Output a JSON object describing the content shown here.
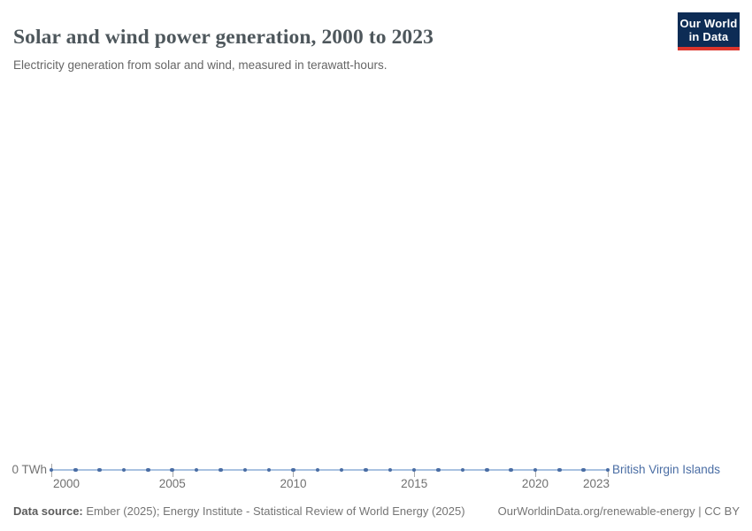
{
  "header": {
    "title": "Solar and wind power generation, 2000 to 2023",
    "subtitle": "Electricity generation from solar and wind, measured in terawatt-hours.",
    "logo": {
      "line1": "Our World",
      "line2": "in Data"
    }
  },
  "chart_data": {
    "type": "line",
    "title": "Solar and wind power generation, 2000 to 2023",
    "unit": "TWh",
    "x": [
      2000,
      2001,
      2002,
      2003,
      2004,
      2005,
      2006,
      2007,
      2008,
      2009,
      2010,
      2011,
      2012,
      2013,
      2014,
      2015,
      2016,
      2017,
      2018,
      2019,
      2020,
      2021,
      2022,
      2023
    ],
    "series": [
      {
        "name": "British Virgin Islands",
        "values": [
          0,
          0,
          0,
          0,
          0,
          0,
          0,
          0,
          0,
          0,
          0,
          0,
          0,
          0,
          0,
          0,
          0,
          0,
          0,
          0,
          0,
          0,
          0,
          0
        ],
        "color": "#4a6da4",
        "line_color": "#a9c2e1"
      }
    ],
    "x_ticks": [
      2000,
      2005,
      2010,
      2015,
      2020,
      2023
    ],
    "x_range": [
      2000,
      2023
    ],
    "y_range": [
      0,
      0
    ],
    "y_zero_label": "0 TWh",
    "grid": false,
    "legend_position": "right-of-line-end"
  },
  "footer": {
    "source_label": "Data source:",
    "source_text": " Ember (2025); Energy Institute - Statistical Review of World Energy (2025)",
    "origin_link": "OurWorldinData.org/renewable-energy | CC BY"
  }
}
